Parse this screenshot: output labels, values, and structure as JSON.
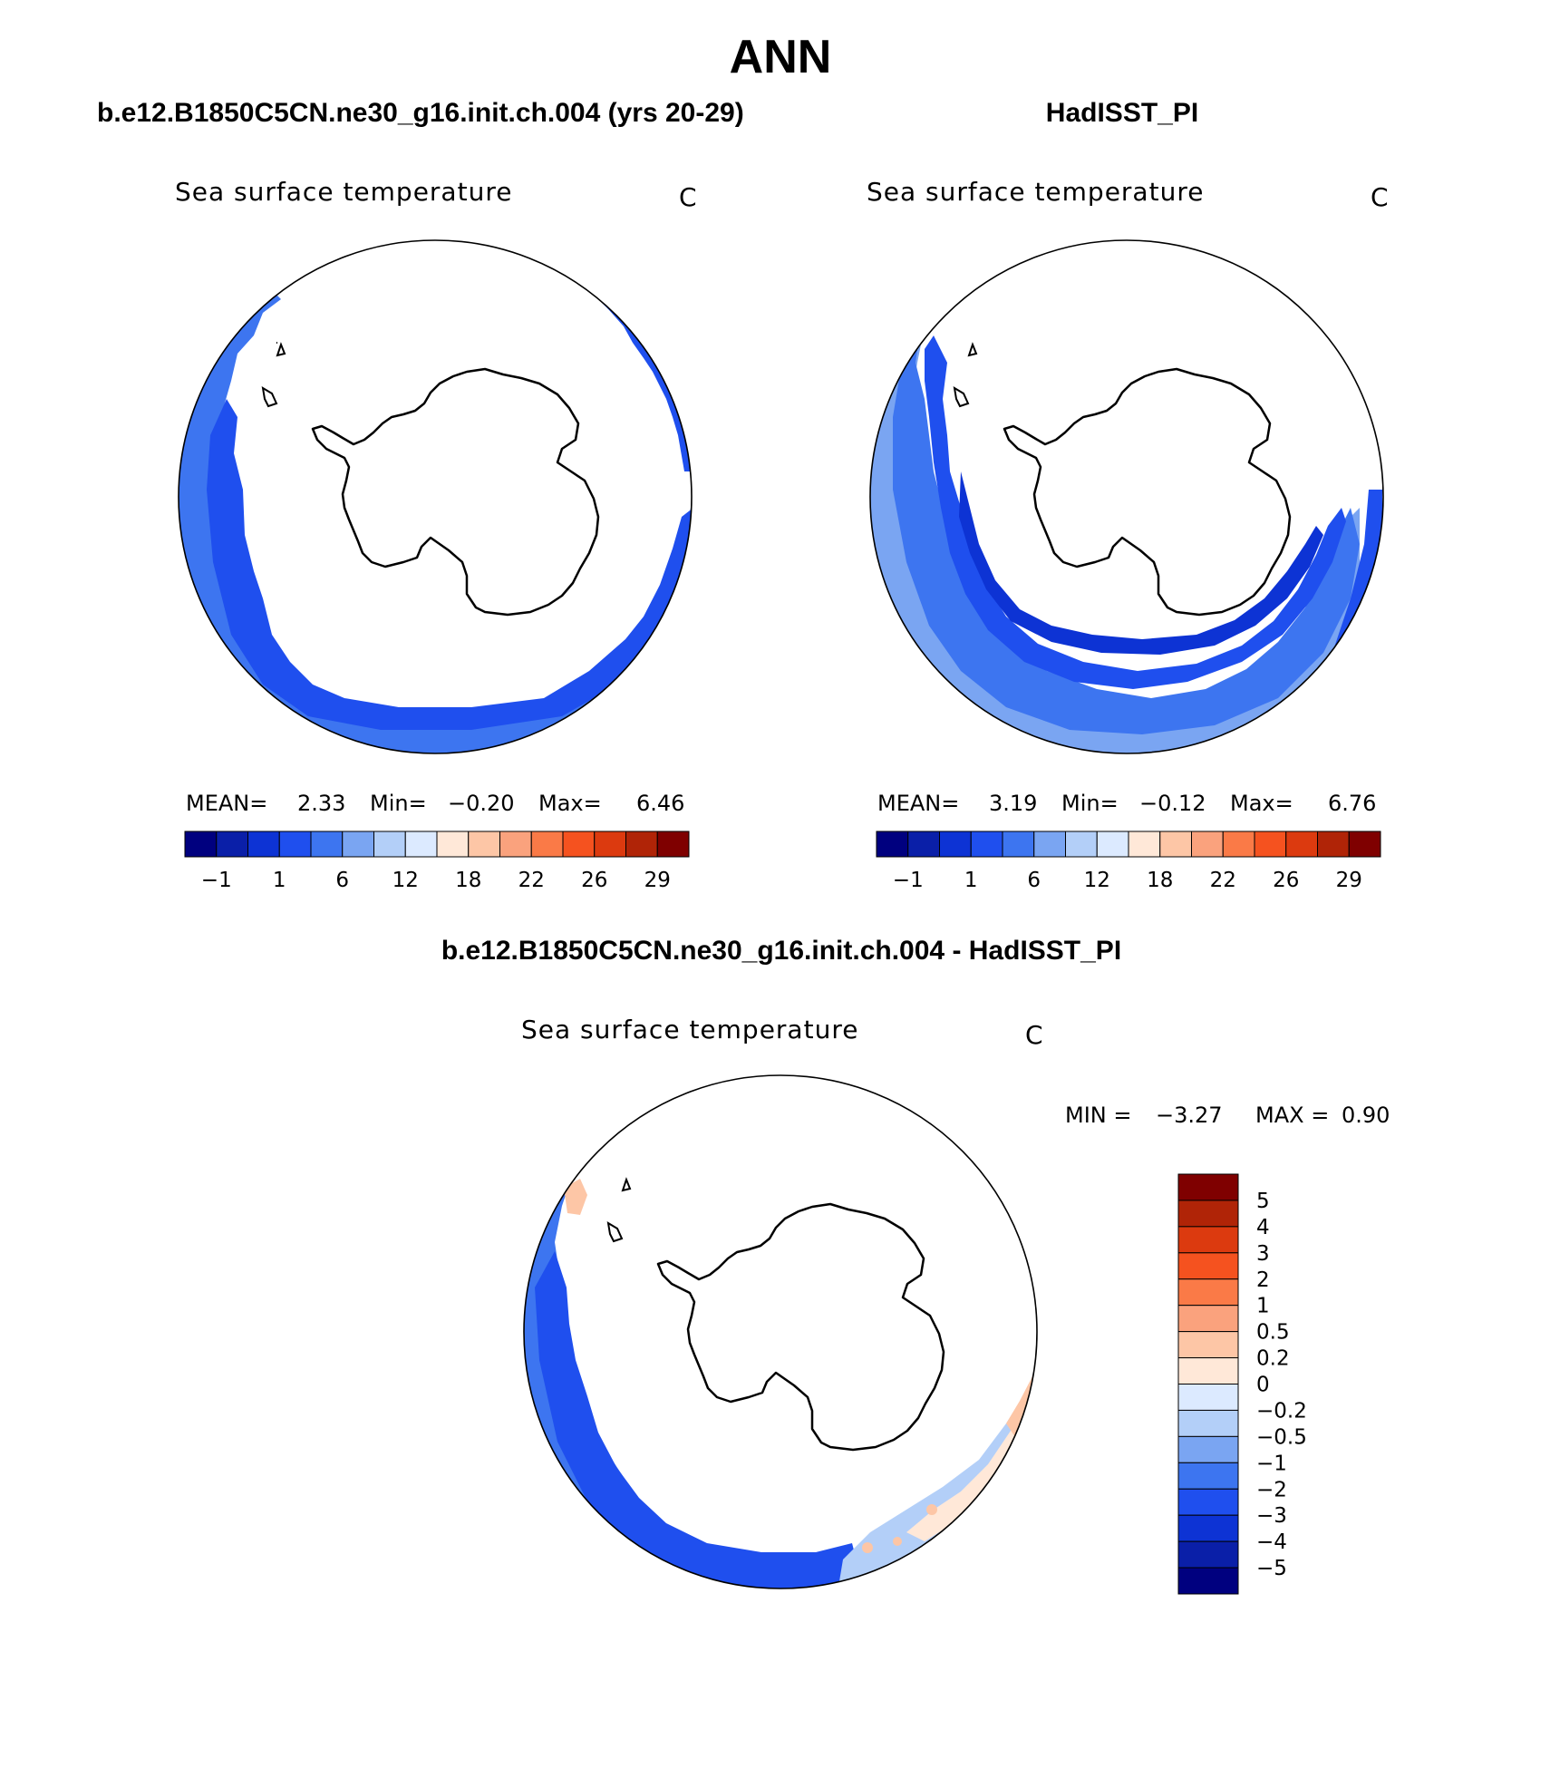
{
  "figure": {
    "title": "ANN",
    "left_header": "b.e12.B1850C5CN.ne30_g16.init.ch.004 (yrs 20-29)",
    "right_header": "HadISST_PI",
    "diff_header": "b.e12.B1850C5CN.ne30_g16.init.ch.004 - HadISST_PI"
  },
  "panels": {
    "left": {
      "variable": "Sea surface temperature",
      "units": "C",
      "mean_label": "MEAN=",
      "mean_value": "2.33",
      "min_label": "Min=",
      "min_value": "−0.20",
      "max_label": "Max=",
      "max_value": "6.46"
    },
    "right": {
      "variable": "Sea surface temperature",
      "units": "C",
      "mean_label": "MEAN=",
      "mean_value": "3.19",
      "min_label": "Min=",
      "min_value": "−0.12",
      "max_label": "Max=",
      "max_value": "6.76"
    },
    "diff": {
      "variable": "Sea surface temperature",
      "units": "C",
      "min_label": "MIN =",
      "min_value": "−3.27",
      "max_label": "MAX =",
      "max_value": "0.90"
    }
  },
  "colorbars": {
    "sst_ticks": [
      "−1",
      "1",
      "6",
      "12",
      "18",
      "22",
      "26",
      "29"
    ],
    "sst_colors": [
      "#00007f",
      "#0a1fa8",
      "#0d33d4",
      "#1f4fee",
      "#3d75f0",
      "#7aa5f2",
      "#b3cff8",
      "#dceaff",
      "#ffe8d8",
      "#fdc6a6",
      "#faa27d",
      "#fa7a47",
      "#f5521f",
      "#dc3a0f",
      "#b02407",
      "#7f0000"
    ],
    "diff_ticks": [
      "5",
      "4",
      "3",
      "2",
      "1",
      "0.5",
      "0.2",
      "0",
      "−0.2",
      "−0.5",
      "−1",
      "−2",
      "−3",
      "−4",
      "−5"
    ],
    "diff_colors": [
      "#7f0000",
      "#b02407",
      "#dc3a0f",
      "#f5521f",
      "#fa7a47",
      "#faa27d",
      "#fdc6a6",
      "#ffe8d8",
      "#dceaff",
      "#b3cff8",
      "#7aa5f2",
      "#3d75f0",
      "#1f4fee",
      "#0d33d4",
      "#0a1fa8",
      "#00007f"
    ]
  },
  "map_colors": {
    "ocean_light": "#3d75f0",
    "ocean_mid": "#1f4fee",
    "ocean_dark": "#0d33d4",
    "ocean_pale": "#7aa5f2",
    "warm_pale": "#ffe8d8",
    "warm_light": "#fdc6a6",
    "coast": "#000000"
  }
}
